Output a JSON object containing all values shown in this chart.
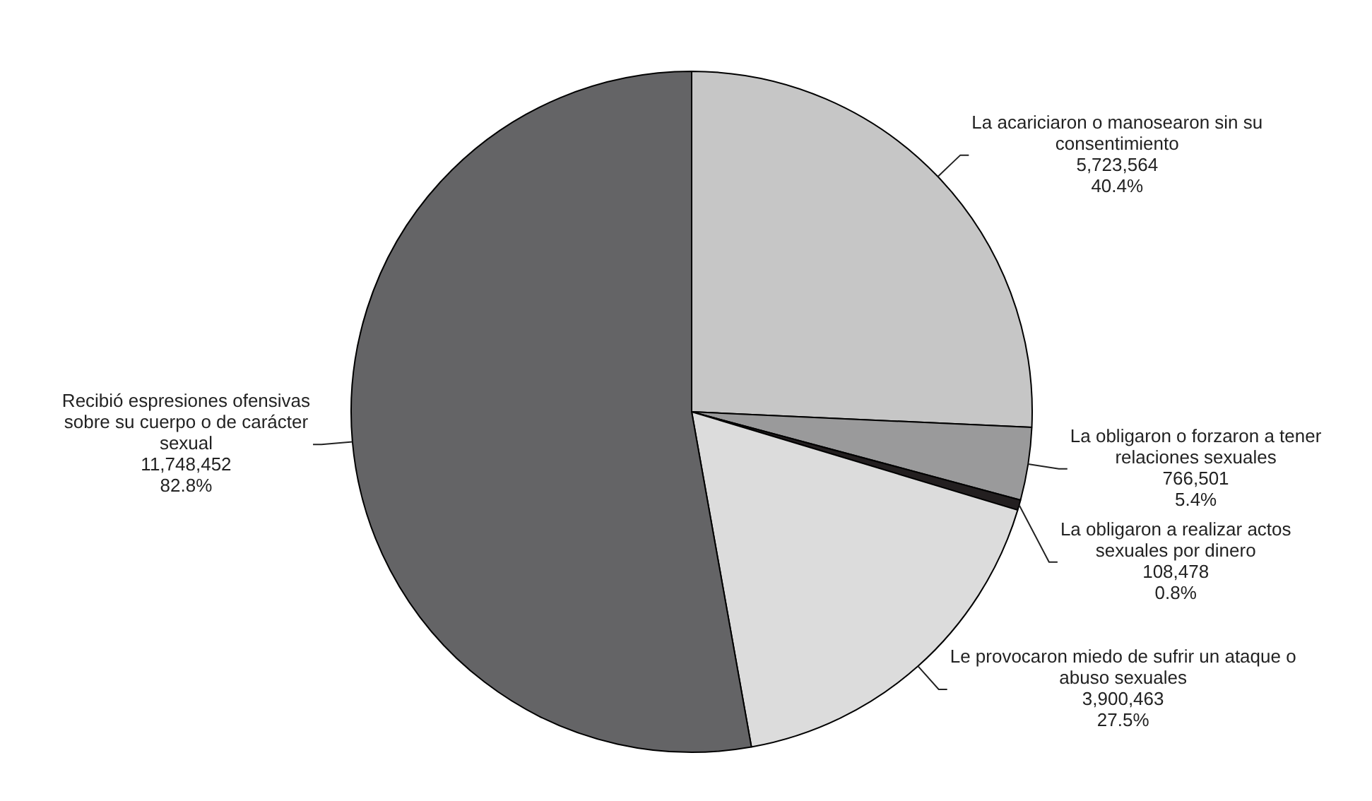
{
  "chart_data": {
    "type": "pie",
    "categories": [
      "La acariciaron o manosearon sin su consentimiento",
      "La obligaron o forzaron a tener relaciones sexuales",
      "La obligaron a realizar actos sexuales por dinero",
      "Le provocaron miedo de sufrir un ataque o abuso sexuales",
      "Recibió espresiones ofensivas sobre su cuerpo o de carácter sexual"
    ],
    "values": [
      5723564,
      766501,
      108478,
      3900463,
      11748452
    ],
    "colors": [
      "#c6c6c6",
      "#9a9a9b",
      "#231f20",
      "#dcdcdc",
      "#646466"
    ],
    "value_labels": [
      "5,723,564\n40.4%",
      "766,501\n5.4%",
      "108,478\n0.8%",
      "3,900,463\n27.5%",
      "11,748,452\n82.8%"
    ],
    "legend": false
  }
}
